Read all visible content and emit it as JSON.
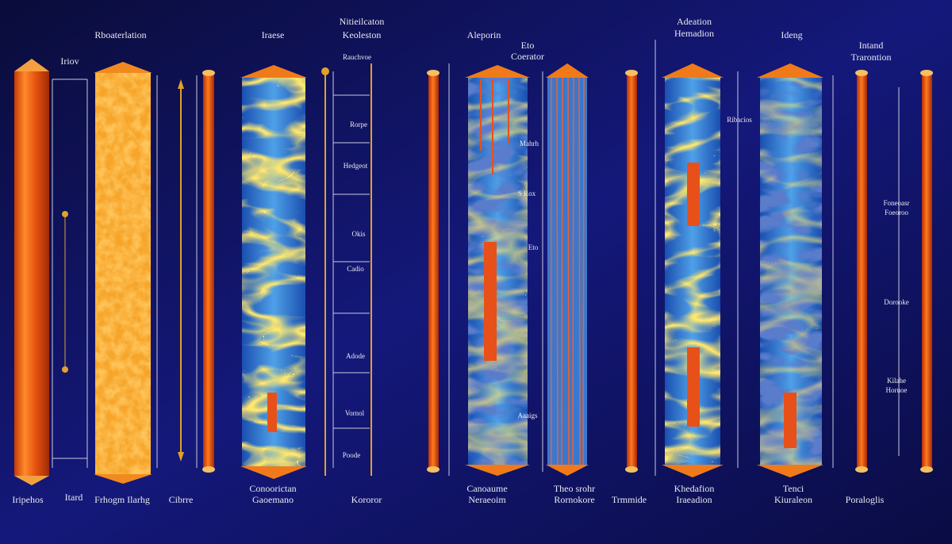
{
  "header_labels": [
    "Rboaterlation",
    "Iriov",
    "Iraese",
    "Nitieilcaton",
    "Keoleston",
    "Aleporin",
    "Eto",
    "Coerator",
    "Adeation",
    "Hemadion",
    "Ideng",
    "Intand",
    "Trarontion"
  ],
  "side_labels": [
    "Ribacios",
    "Mahrh",
    "S Rox",
    "Eto",
    "Aaaigs",
    "Foneoasr",
    "Foeoroo",
    "Dorooke",
    "Kilahe",
    "Horuoe",
    "Rauchvoe",
    "Rorpe",
    "Hedgeot",
    "Okis",
    "Cadio",
    "Adode",
    "Vornol",
    "Poode"
  ],
  "footer_labels": [
    "Iripehos",
    "Itard",
    "Frhogm Ilarhg",
    "Cibrre",
    "Conoorictan",
    "Gaoemano",
    "Kororor",
    "Canoaume",
    "Neraeoim",
    "Theo srohr",
    "Rornokore",
    "Trmmide",
    "Khedafion",
    "Iraeadion",
    "Tenci",
    "Kiuraleon",
    "Poraloglis"
  ]
}
